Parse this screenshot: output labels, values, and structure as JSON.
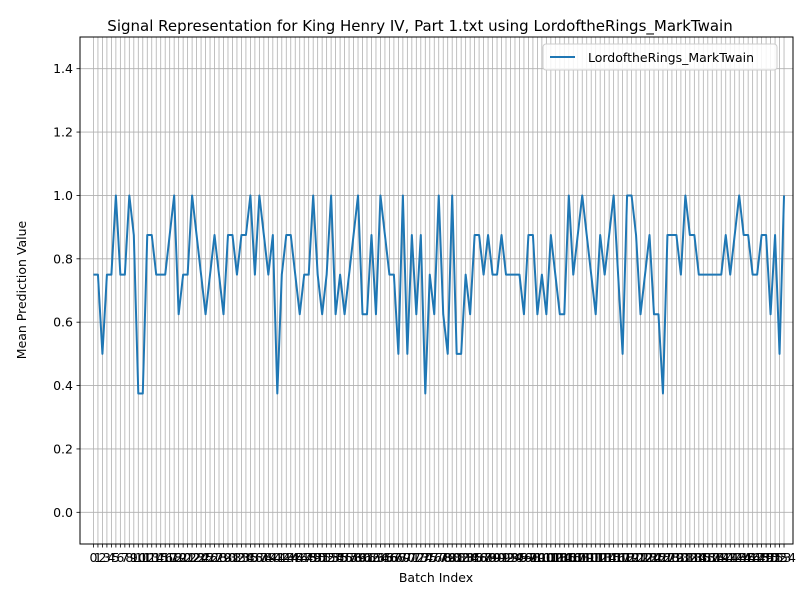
{
  "chart_data": {
    "type": "line",
    "title": "Signal Representation for King Henry IV, Part 1.txt using LordoftheRings_MarkTwain",
    "xlabel": "Batch Index",
    "ylabel": "Mean Prediction Value",
    "xlim": [
      -3.0,
      156.0
    ],
    "ylim": [
      -0.1,
      1.5
    ],
    "yticks": [
      0.0,
      0.2,
      0.4,
      0.6,
      0.8,
      1.0,
      1.2,
      1.4
    ],
    "ytick_labels": [
      "0.0",
      "0.2",
      "0.4",
      "0.6",
      "0.8",
      "1.0",
      "1.2",
      "1.4"
    ],
    "xtick_step": 1,
    "grid": true,
    "legend_position": "top-right",
    "series": [
      {
        "name": "LordoftheRings_MarkTwain",
        "color": "#1f77b4",
        "values": [
          0.75,
          0.75,
          0.5,
          0.75,
          0.75,
          1.0,
          0.75,
          0.75,
          1.0,
          0.875,
          0.375,
          0.375,
          0.875,
          0.875,
          0.75,
          0.75,
          0.75,
          0.875,
          1.0,
          0.625,
          0.75,
          0.75,
          1.0,
          0.875,
          0.75,
          0.625,
          0.75,
          0.875,
          0.75,
          0.625,
          0.875,
          0.875,
          0.75,
          0.875,
          0.875,
          1.0,
          0.75,
          1.0,
          0.875,
          0.75,
          0.875,
          0.375,
          0.75,
          0.875,
          0.875,
          0.75,
          0.625,
          0.75,
          0.75,
          1.0,
          0.75,
          0.625,
          0.75,
          1.0,
          0.625,
          0.75,
          0.625,
          0.75,
          0.875,
          1.0,
          0.625,
          0.625,
          0.875,
          0.625,
          1.0,
          0.875,
          0.75,
          0.75,
          0.5,
          1.0,
          0.5,
          0.875,
          0.625,
          0.875,
          0.375,
          0.75,
          0.625,
          1.0,
          0.625,
          0.5,
          1.0,
          0.5,
          0.5,
          0.75,
          0.625,
          0.875,
          0.875,
          0.75,
          0.875,
          0.75,
          0.75,
          0.875,
          0.75,
          0.75,
          0.75,
          0.75,
          0.625,
          0.875,
          0.875,
          0.625,
          0.75,
          0.625,
          0.875,
          0.75,
          0.625,
          0.625,
          1.0,
          0.75,
          0.875,
          1.0,
          0.875,
          0.75,
          0.625,
          0.875,
          0.75,
          0.875,
          1.0,
          0.75,
          0.5,
          1.0,
          1.0,
          0.875,
          0.625,
          0.75,
          0.875,
          0.625,
          0.625,
          0.375,
          0.875,
          0.875,
          0.875,
          0.75,
          1.0,
          0.875,
          0.875,
          0.75,
          0.75,
          0.75,
          0.75,
          0.75,
          0.75,
          0.875,
          0.75,
          0.875,
          1.0,
          0.875,
          0.875,
          0.75,
          0.75,
          0.875,
          0.875,
          0.625,
          0.875,
          0.5,
          1.0
        ]
      }
    ]
  }
}
